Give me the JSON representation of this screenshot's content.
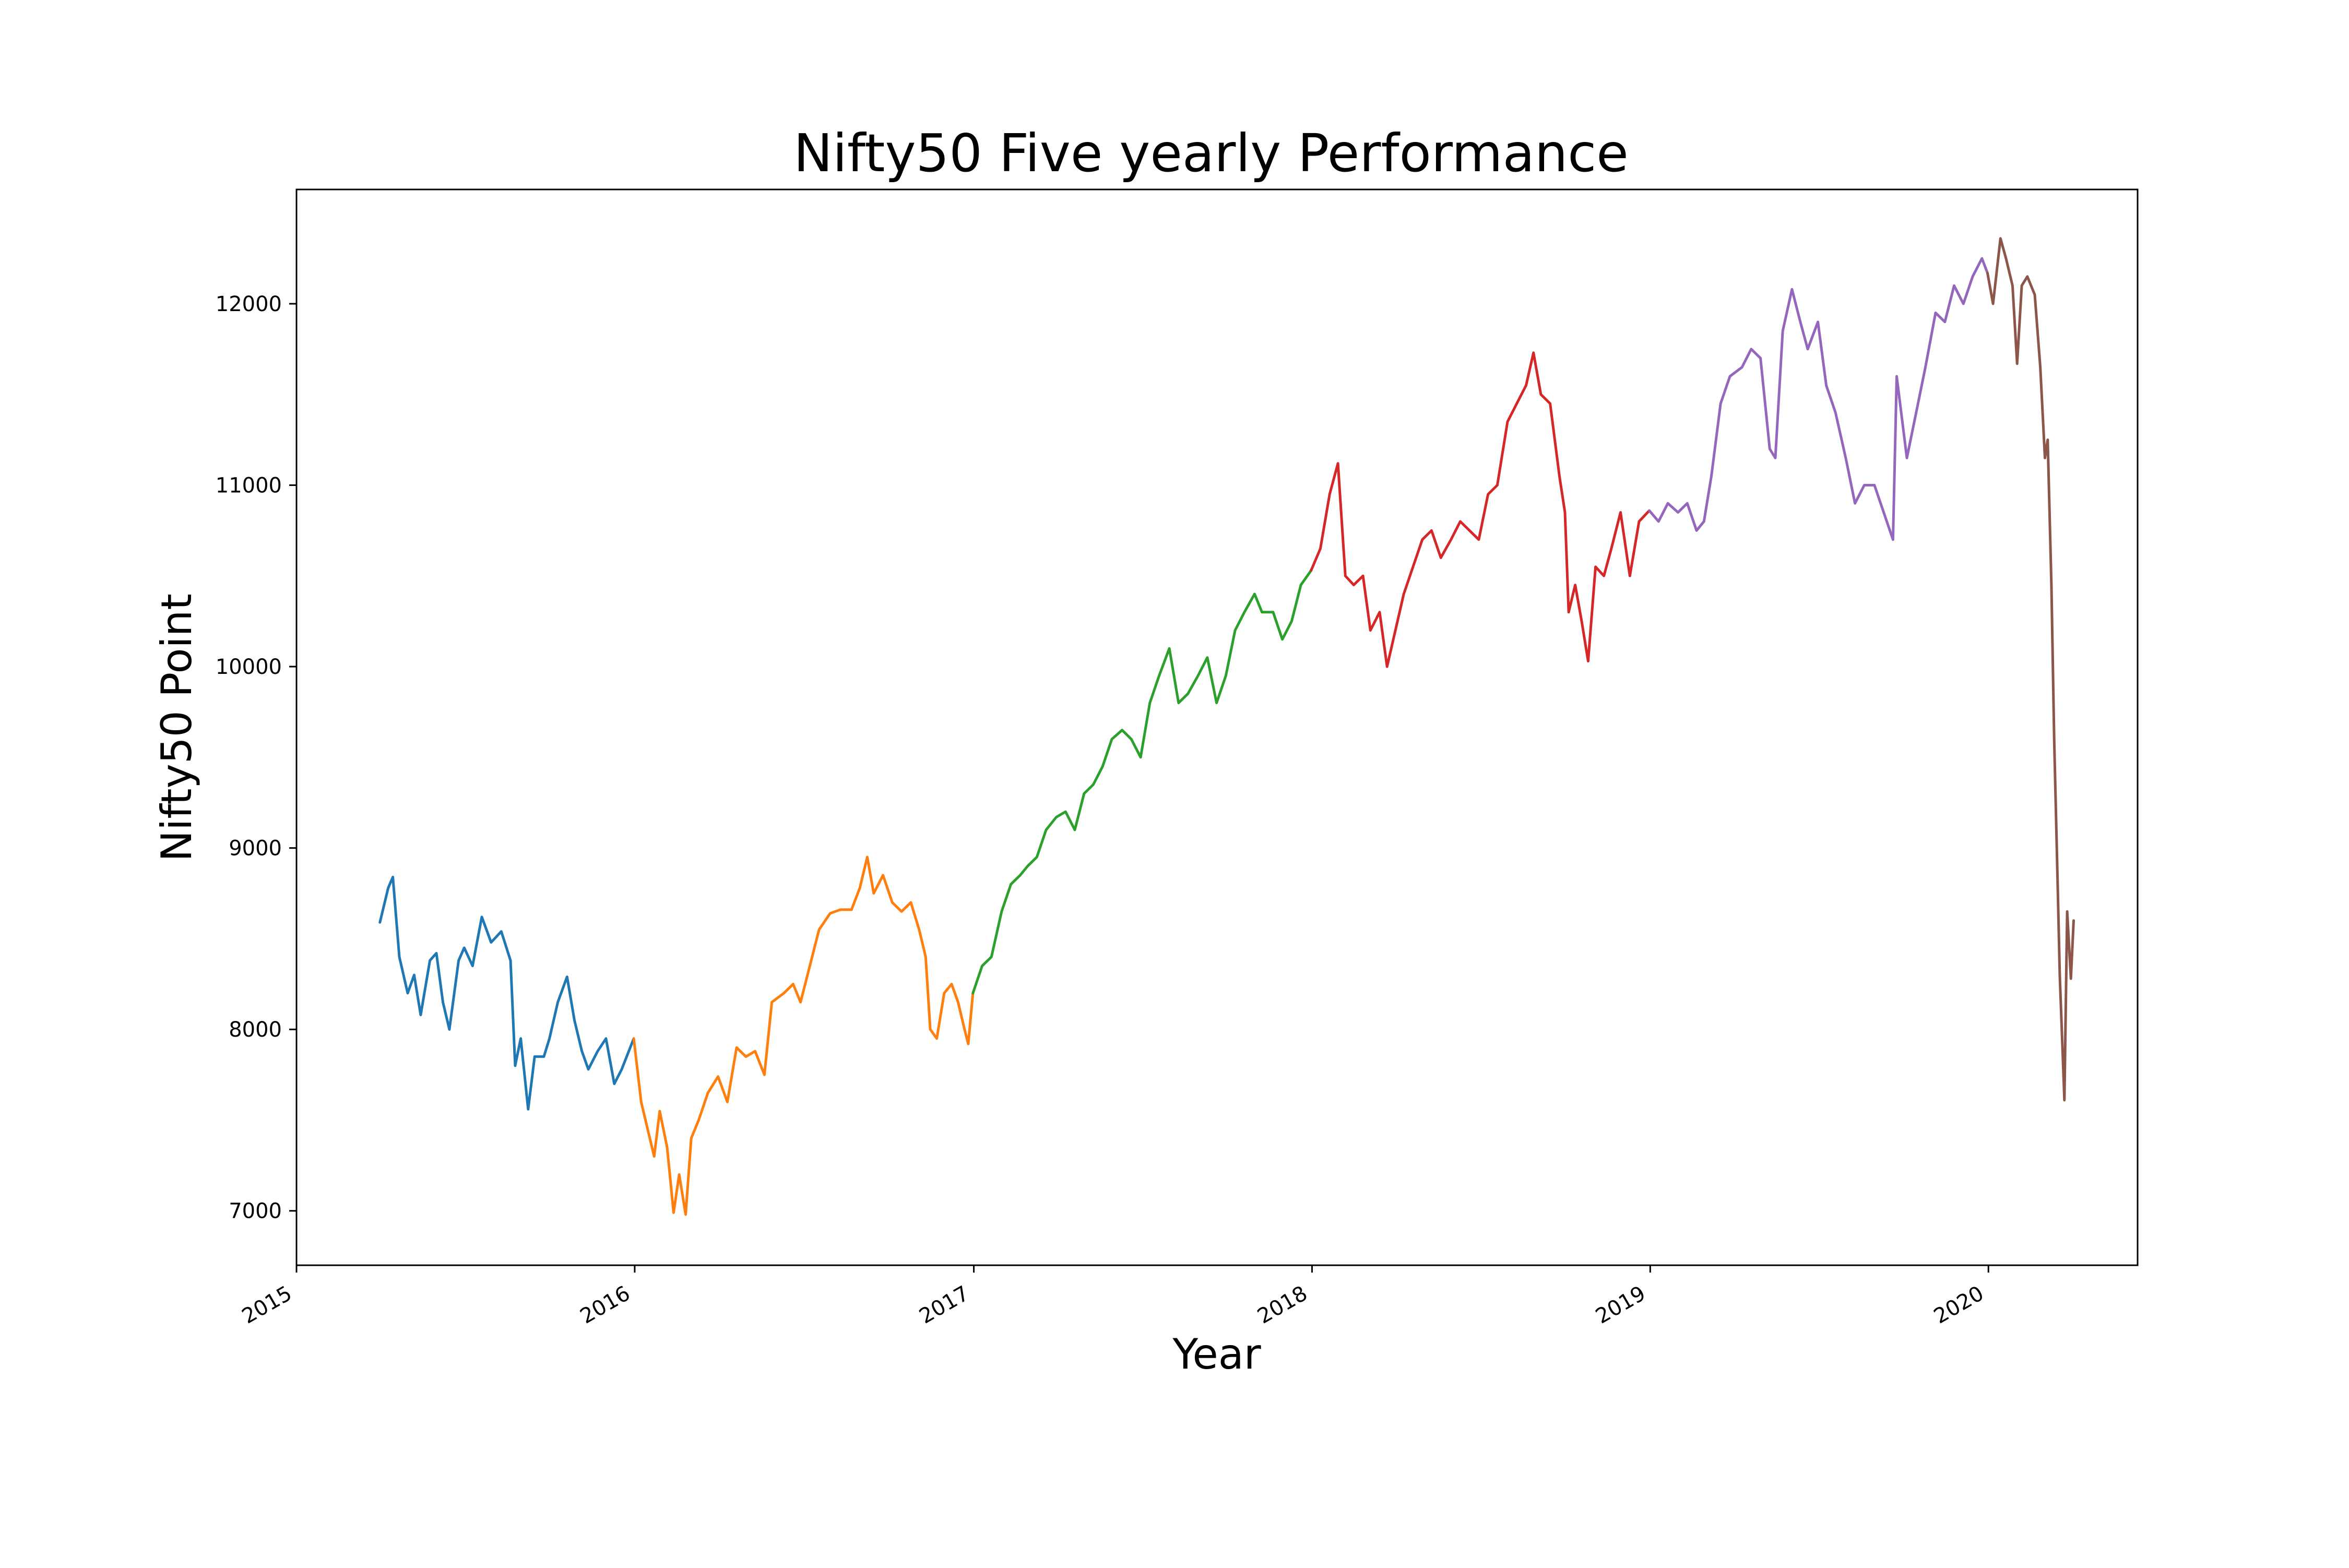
{
  "chart_data": {
    "type": "line",
    "title": "Nifty50 Five yearly Performance",
    "xlabel": "Year",
    "ylabel": "Nifty50 Point",
    "x_ticks": [
      "2015",
      "2016",
      "2017",
      "2018",
      "2019",
      "2020"
    ],
    "y_ticks": [
      7000,
      8000,
      9000,
      10000,
      11000,
      12000
    ],
    "xlim": [
      "2015-01-01",
      "2020-06-10"
    ],
    "ylim": [
      6700,
      12630
    ],
    "grid": false,
    "legend": "none",
    "series": [
      {
        "color": "#1f77b4",
        "points": [
          [
            "2015-04-01",
            8590
          ],
          [
            "2015-04-10",
            8780
          ],
          [
            "2015-04-15",
            8840
          ],
          [
            "2015-04-22",
            8400
          ],
          [
            "2015-05-01",
            8200
          ],
          [
            "2015-05-08",
            8300
          ],
          [
            "2015-05-15",
            8080
          ],
          [
            "2015-05-25",
            8380
          ],
          [
            "2015-06-01",
            8420
          ],
          [
            "2015-06-08",
            8150
          ],
          [
            "2015-06-15",
            8000
          ],
          [
            "2015-06-25",
            8380
          ],
          [
            "2015-07-01",
            8450
          ],
          [
            "2015-07-10",
            8350
          ],
          [
            "2015-07-20",
            8620
          ],
          [
            "2015-07-30",
            8480
          ],
          [
            "2015-08-10",
            8540
          ],
          [
            "2015-08-20",
            8380
          ],
          [
            "2015-08-25",
            7800
          ],
          [
            "2015-08-31",
            7950
          ],
          [
            "2015-09-08",
            7560
          ],
          [
            "2015-09-15",
            7850
          ],
          [
            "2015-09-25",
            7850
          ],
          [
            "2015-10-01",
            7950
          ],
          [
            "2015-10-10",
            8150
          ],
          [
            "2015-10-20",
            8290
          ],
          [
            "2015-10-28",
            8050
          ],
          [
            "2015-11-05",
            7880
          ],
          [
            "2015-11-12",
            7780
          ],
          [
            "2015-11-22",
            7880
          ],
          [
            "2015-12-01",
            7950
          ],
          [
            "2015-12-10",
            7700
          ],
          [
            "2015-12-18",
            7780
          ],
          [
            "2015-12-31",
            7950
          ]
        ]
      },
      {
        "color": "#ff7f0e",
        "points": [
          [
            "2015-12-31",
            7950
          ],
          [
            "2016-01-08",
            7600
          ],
          [
            "2016-01-15",
            7450
          ],
          [
            "2016-01-22",
            7300
          ],
          [
            "2016-01-28",
            7550
          ],
          [
            "2016-02-05",
            7350
          ],
          [
            "2016-02-12",
            6990
          ],
          [
            "2016-02-18",
            7200
          ],
          [
            "2016-02-25",
            6980
          ],
          [
            "2016-03-02",
            7400
          ],
          [
            "2016-03-10",
            7500
          ],
          [
            "2016-03-20",
            7650
          ],
          [
            "2016-03-31",
            7740
          ],
          [
            "2016-04-10",
            7600
          ],
          [
            "2016-04-20",
            7900
          ],
          [
            "2016-04-30",
            7850
          ],
          [
            "2016-05-10",
            7880
          ],
          [
            "2016-05-20",
            7750
          ],
          [
            "2016-05-28",
            8150
          ],
          [
            "2016-06-10",
            8200
          ],
          [
            "2016-06-20",
            8250
          ],
          [
            "2016-06-28",
            8150
          ],
          [
            "2016-07-08",
            8350
          ],
          [
            "2016-07-18",
            8550
          ],
          [
            "2016-07-30",
            8640
          ],
          [
            "2016-08-10",
            8660
          ],
          [
            "2016-08-22",
            8660
          ],
          [
            "2016-08-31",
            8780
          ],
          [
            "2016-09-08",
            8950
          ],
          [
            "2016-09-15",
            8750
          ],
          [
            "2016-09-25",
            8850
          ],
          [
            "2016-10-05",
            8700
          ],
          [
            "2016-10-15",
            8650
          ],
          [
            "2016-10-25",
            8700
          ],
          [
            "2016-11-03",
            8550
          ],
          [
            "2016-11-10",
            8400
          ],
          [
            "2016-11-15",
            8000
          ],
          [
            "2016-11-22",
            7950
          ],
          [
            "2016-11-30",
            8200
          ],
          [
            "2016-12-08",
            8250
          ],
          [
            "2016-12-15",
            8150
          ],
          [
            "2016-12-22",
            8000
          ],
          [
            "2016-12-26",
            7920
          ],
          [
            "2016-12-31",
            8200
          ]
        ]
      },
      {
        "color": "#2ca02c",
        "points": [
          [
            "2016-12-31",
            8200
          ],
          [
            "2017-01-10",
            8350
          ],
          [
            "2017-01-20",
            8400
          ],
          [
            "2017-01-31",
            8650
          ],
          [
            "2017-02-10",
            8800
          ],
          [
            "2017-02-20",
            8850
          ],
          [
            "2017-02-28",
            8900
          ],
          [
            "2017-03-10",
            8950
          ],
          [
            "2017-03-20",
            9100
          ],
          [
            "2017-03-31",
            9170
          ],
          [
            "2017-04-10",
            9200
          ],
          [
            "2017-04-20",
            9100
          ],
          [
            "2017-04-30",
            9300
          ],
          [
            "2017-05-10",
            9350
          ],
          [
            "2017-05-20",
            9450
          ],
          [
            "2017-05-30",
            9600
          ],
          [
            "2017-06-10",
            9650
          ],
          [
            "2017-06-20",
            9600
          ],
          [
            "2017-06-30",
            9500
          ],
          [
            "2017-07-10",
            9800
          ],
          [
            "2017-07-20",
            9950
          ],
          [
            "2017-07-31",
            10100
          ],
          [
            "2017-08-10",
            9800
          ],
          [
            "2017-08-20",
            9850
          ],
          [
            "2017-08-31",
            9950
          ],
          [
            "2017-09-10",
            10050
          ],
          [
            "2017-09-20",
            9800
          ],
          [
            "2017-09-30",
            9950
          ],
          [
            "2017-10-10",
            10200
          ],
          [
            "2017-10-20",
            10300
          ],
          [
            "2017-10-31",
            10400
          ],
          [
            "2017-11-08",
            10300
          ],
          [
            "2017-11-20",
            10300
          ],
          [
            "2017-11-30",
            10150
          ],
          [
            "2017-12-10",
            10250
          ],
          [
            "2017-12-20",
            10450
          ],
          [
            "2017-12-31",
            10530
          ]
        ]
      },
      {
        "color": "#d62728",
        "points": [
          [
            "2017-12-31",
            10530
          ],
          [
            "2018-01-10",
            10650
          ],
          [
            "2018-01-20",
            10950
          ],
          [
            "2018-01-29",
            11120
          ],
          [
            "2018-02-06",
            10500
          ],
          [
            "2018-02-15",
            10450
          ],
          [
            "2018-02-25",
            10500
          ],
          [
            "2018-03-05",
            10200
          ],
          [
            "2018-03-15",
            10300
          ],
          [
            "2018-03-23",
            10000
          ],
          [
            "2018-04-01",
            10200
          ],
          [
            "2018-04-10",
            10400
          ],
          [
            "2018-04-20",
            10550
          ],
          [
            "2018-04-30",
            10700
          ],
          [
            "2018-05-10",
            10750
          ],
          [
            "2018-05-20",
            10600
          ],
          [
            "2018-05-31",
            10700
          ],
          [
            "2018-06-10",
            10800
          ],
          [
            "2018-06-20",
            10750
          ],
          [
            "2018-06-30",
            10700
          ],
          [
            "2018-07-10",
            10950
          ],
          [
            "2018-07-20",
            11000
          ],
          [
            "2018-07-31",
            11350
          ],
          [
            "2018-08-10",
            11450
          ],
          [
            "2018-08-20",
            11550
          ],
          [
            "2018-08-28",
            11730
          ],
          [
            "2018-09-05",
            11500
          ],
          [
            "2018-09-15",
            11450
          ],
          [
            "2018-09-25",
            11050
          ],
          [
            "2018-10-01",
            10850
          ],
          [
            "2018-10-05",
            10300
          ],
          [
            "2018-10-12",
            10450
          ],
          [
            "2018-10-19",
            10250
          ],
          [
            "2018-10-26",
            10030
          ],
          [
            "2018-11-03",
            10550
          ],
          [
            "2018-11-12",
            10500
          ],
          [
            "2018-11-20",
            10650
          ],
          [
            "2018-11-30",
            10850
          ],
          [
            "2018-12-10",
            10500
          ],
          [
            "2018-12-20",
            10800
          ],
          [
            "2018-12-31",
            10860
          ]
        ]
      },
      {
        "color": "#9467bd",
        "points": [
          [
            "2018-12-31",
            10860
          ],
          [
            "2019-01-10",
            10800
          ],
          [
            "2019-01-20",
            10900
          ],
          [
            "2019-01-31",
            10850
          ],
          [
            "2019-02-10",
            10900
          ],
          [
            "2019-02-20",
            10750
          ],
          [
            "2019-02-28",
            10800
          ],
          [
            "2019-03-08",
            11050
          ],
          [
            "2019-03-18",
            11450
          ],
          [
            "2019-03-28",
            11600
          ],
          [
            "2019-04-10",
            11650
          ],
          [
            "2019-04-20",
            11750
          ],
          [
            "2019-04-30",
            11700
          ],
          [
            "2019-05-10",
            11200
          ],
          [
            "2019-05-16",
            11150
          ],
          [
            "2019-05-24",
            11850
          ],
          [
            "2019-06-03",
            12080
          ],
          [
            "2019-06-12",
            11900
          ],
          [
            "2019-06-20",
            11750
          ],
          [
            "2019-07-01",
            11900
          ],
          [
            "2019-07-10",
            11550
          ],
          [
            "2019-07-20",
            11400
          ],
          [
            "2019-07-31",
            11150
          ],
          [
            "2019-08-10",
            10900
          ],
          [
            "2019-08-20",
            11000
          ],
          [
            "2019-08-31",
            11000
          ],
          [
            "2019-09-10",
            10850
          ],
          [
            "2019-09-20",
            10700
          ],
          [
            "2019-09-24",
            11600
          ],
          [
            "2019-10-05",
            11150
          ],
          [
            "2019-10-15",
            11400
          ],
          [
            "2019-10-25",
            11650
          ],
          [
            "2019-11-05",
            11950
          ],
          [
            "2019-11-15",
            11900
          ],
          [
            "2019-11-25",
            12100
          ],
          [
            "2019-12-05",
            12000
          ],
          [
            "2019-12-15",
            12150
          ],
          [
            "2019-12-25",
            12250
          ],
          [
            "2019-12-31",
            12170
          ]
        ]
      },
      {
        "color": "#8c564b",
        "points": [
          [
            "2019-12-31",
            12170
          ],
          [
            "2020-01-06",
            12000
          ],
          [
            "2020-01-14",
            12360
          ],
          [
            "2020-01-20",
            12250
          ],
          [
            "2020-01-27",
            12100
          ],
          [
            "2020-02-01",
            11670
          ],
          [
            "2020-02-06",
            12100
          ],
          [
            "2020-02-12",
            12150
          ],
          [
            "2020-02-20",
            12050
          ],
          [
            "2020-02-26",
            11650
          ],
          [
            "2020-03-02",
            11150
          ],
          [
            "2020-03-05",
            11250
          ],
          [
            "2020-03-09",
            10450
          ],
          [
            "2020-03-12",
            9600
          ],
          [
            "2020-03-16",
            8750
          ],
          [
            "2020-03-18",
            8300
          ],
          [
            "2020-03-23",
            7610
          ],
          [
            "2020-03-26",
            8650
          ],
          [
            "2020-03-30",
            8280
          ],
          [
            "2020-04-02",
            8600
          ]
        ]
      }
    ]
  }
}
